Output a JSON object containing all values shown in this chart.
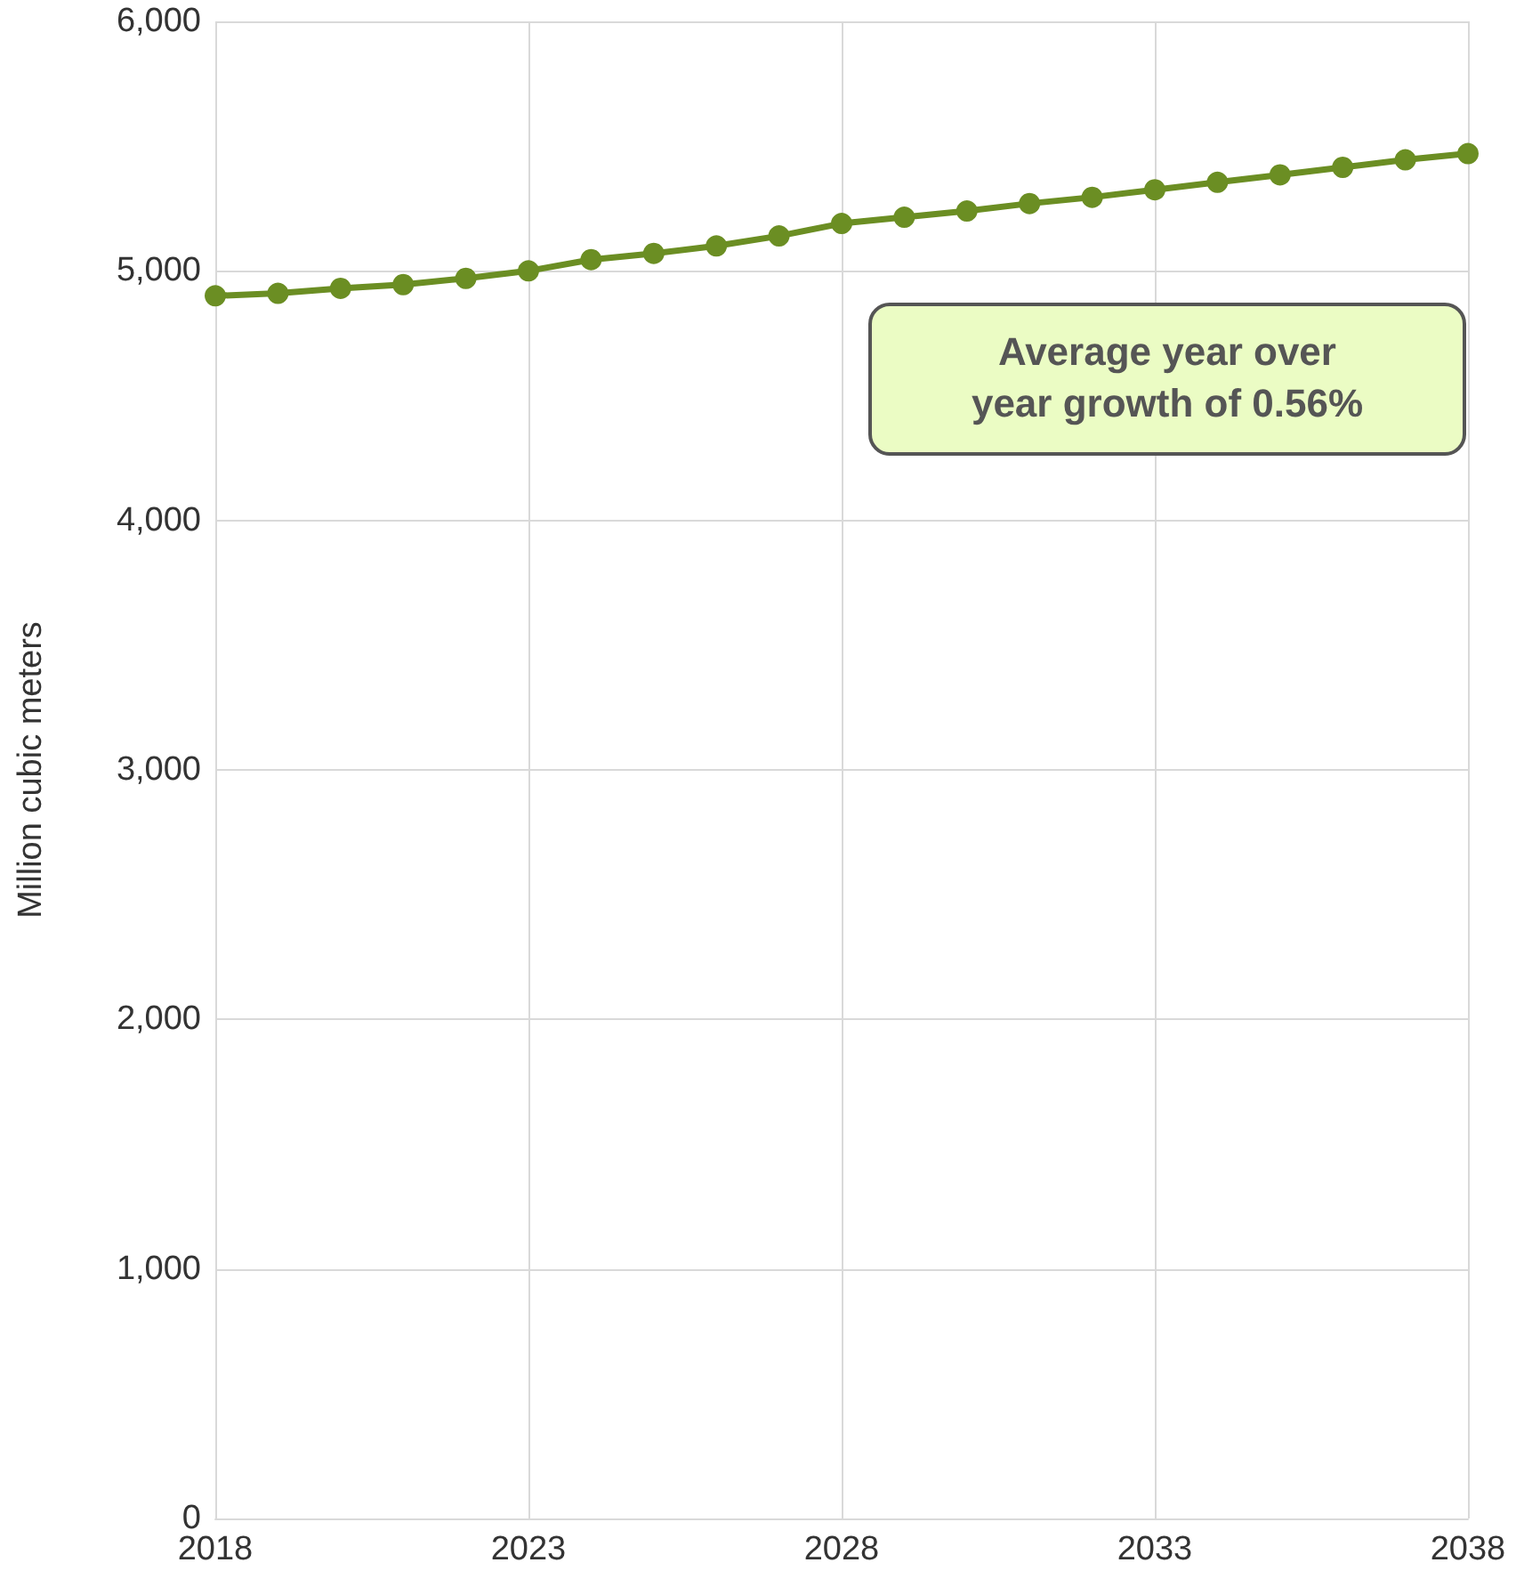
{
  "chart_data": {
    "type": "line",
    "ylabel": "Million cubic meters",
    "x": [
      2018,
      2019,
      2020,
      2021,
      2022,
      2023,
      2024,
      2025,
      2026,
      2027,
      2028,
      2029,
      2030,
      2031,
      2032,
      2033,
      2034,
      2035,
      2036,
      2037,
      2038
    ],
    "series": [
      {
        "color": "#6b8e23",
        "values": [
          4900,
          4910,
          4930,
          4945,
          4970,
          5000,
          5045,
          5070,
          5100,
          5140,
          5190,
          5215,
          5240,
          5270,
          5295,
          5325,
          5355,
          5385,
          5415,
          5445,
          5470
        ]
      }
    ],
    "xlim": [
      2018,
      2038
    ],
    "xticks": [
      2018,
      2023,
      2028,
      2033,
      2038
    ],
    "ylim": [
      0,
      6000
    ],
    "yticks": [
      {
        "value": 0,
        "label": "0"
      },
      {
        "value": 1000,
        "label": "1,000"
      },
      {
        "value": 2000,
        "label": "2,000"
      },
      {
        "value": 3000,
        "label": "3,000"
      },
      {
        "value": 4000,
        "label": "4,000"
      },
      {
        "value": 5000,
        "label": "5,000"
      },
      {
        "value": 6000,
        "label": "6,000"
      }
    ],
    "grid": true,
    "marker": "circle",
    "line_style": "solid",
    "annotations": [
      "Average year over year growth of 0.56%"
    ]
  }
}
